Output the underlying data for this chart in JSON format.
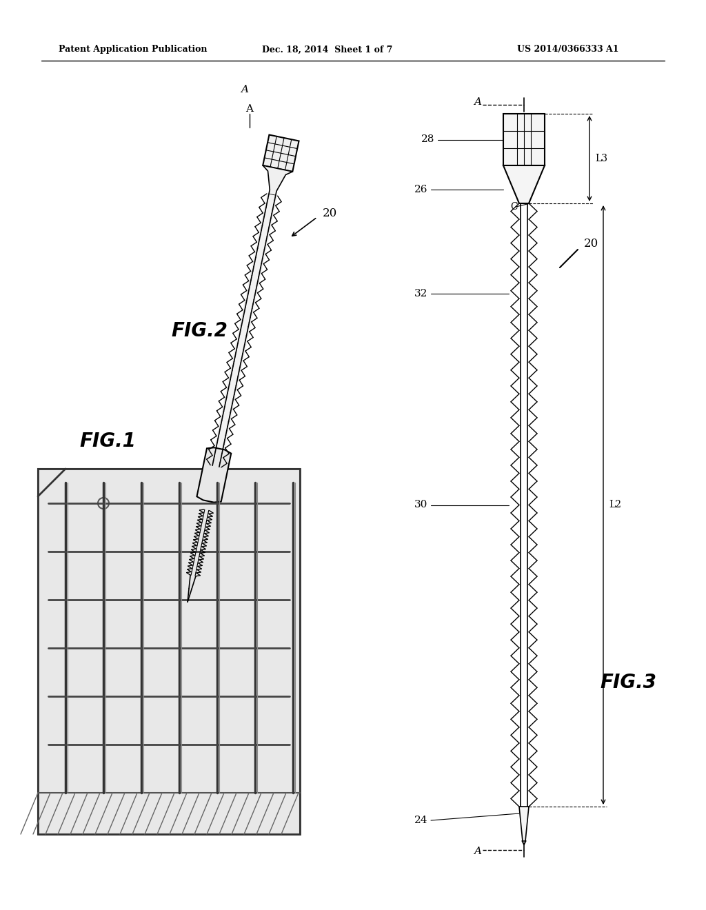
{
  "bg_color": "#ffffff",
  "header_left": "Patent Application Publication",
  "header_mid": "Dec. 18, 2014  Sheet 1 of 7",
  "header_right": "US 2014/0366333 A1",
  "fig1_label": "FIG.1",
  "fig2_label": "FIG.2",
  "fig3_label": "FIG.3",
  "ref_20_fig2": "20",
  "ref_20_fig3": "20",
  "ref_24": "24",
  "ref_26": "26",
  "ref_28": "28",
  "ref_30": "30",
  "ref_32": "32",
  "ref_C": "C",
  "ref_L2": "L2",
  "ref_L3": "L3",
  "ref_A_top": "A",
  "ref_A_bot": "A",
  "line_color": "#000000",
  "text_color": "#000000"
}
